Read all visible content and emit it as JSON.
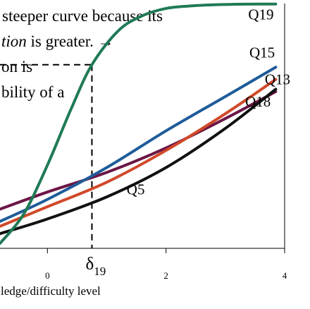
{
  "annotation": {
    "lines": [
      "steeper curve because its",
      {
        "italic": "tion",
        "rest": " is greater. →"
      },
      "on is",
      "bility of a"
    ]
  },
  "chart_data": {
    "type": "line",
    "xlabel": "ledge/difficulty level",
    "x_ticks": [
      0,
      2,
      4
    ],
    "xlim": [
      -0.8,
      4
    ],
    "ylim": [
      0,
      1
    ],
    "delta_marker": {
      "symbol": "δ",
      "subscript": "19",
      "x": 0.75,
      "y": 0.75
    },
    "colors": {
      "Q19": "#1f7a55",
      "Q15": "#1f5c99",
      "Q13": "#d0492a",
      "Q18": "#6b1645",
      "Q5": "#111111"
    },
    "series": [
      {
        "name": "Q19",
        "x": [
          -0.8,
          -0.4,
          0,
          0.4,
          0.75,
          1.2,
          1.6,
          2,
          2.4,
          2.8,
          3.2,
          3.6,
          3.85
        ],
        "y": [
          0.02,
          0.14,
          0.34,
          0.57,
          0.75,
          0.89,
          0.95,
          0.98,
          0.99,
          0.995,
          0.997,
          0.998,
          0.998
        ]
      },
      {
        "name": "Q15",
        "x": [
          -0.8,
          0,
          1,
          2,
          3,
          3.85
        ],
        "y": [
          0.11,
          0.2,
          0.33,
          0.48,
          0.62,
          0.74
        ]
      },
      {
        "name": "Q13",
        "x": [
          -0.8,
          0,
          1,
          2,
          3,
          3.85
        ],
        "y": [
          0.09,
          0.17,
          0.27,
          0.4,
          0.55,
          0.69
        ]
      },
      {
        "name": "Q18",
        "x": [
          -0.8,
          0,
          1,
          2,
          3,
          3.85
        ],
        "y": [
          0.16,
          0.23,
          0.31,
          0.41,
          0.53,
          0.64
        ]
      },
      {
        "name": "Q5",
        "x": [
          -0.8,
          0,
          1,
          2,
          3,
          3.85
        ],
        "y": [
          0.06,
          0.12,
          0.21,
          0.33,
          0.49,
          0.65
        ]
      }
    ],
    "curve_labels": [
      {
        "name": "Q19",
        "x": 3.6,
        "y": 0.955
      },
      {
        "name": "Q15",
        "x": 3.62,
        "y": 0.8
      },
      {
        "name": "Q13",
        "x": 3.88,
        "y": 0.69
      },
      {
        "name": "Q18",
        "x": 3.55,
        "y": 0.6
      },
      {
        "name": "Q5",
        "x": 1.55,
        "y": 0.24
      }
    ]
  }
}
